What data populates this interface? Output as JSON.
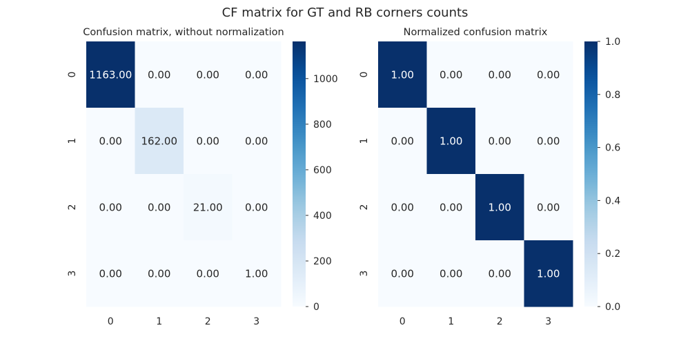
{
  "suptitle": "CF matrix for GT and RB corners counts",
  "colormap": {
    "name": "Blues",
    "stops": [
      "#f7fbff",
      "#deebf7",
      "#c6dbef",
      "#9ecae1",
      "#6baed6",
      "#4292c6",
      "#2171b5",
      "#08519c",
      "#08306b"
    ]
  },
  "cell_text_colors": {
    "dark_bg": "#ffffff",
    "light_bg": "#262626"
  },
  "chart_data": [
    {
      "type": "heatmap",
      "title": "Confusion matrix, without normalization",
      "x_tick_labels": [
        "0",
        "1",
        "2",
        "3"
      ],
      "y_tick_labels": [
        "0",
        "1",
        "2",
        "3"
      ],
      "values": [
        [
          1163,
          0,
          0,
          0
        ],
        [
          0,
          162,
          0,
          0
        ],
        [
          0,
          0,
          21,
          0
        ],
        [
          0,
          0,
          0,
          1
        ]
      ],
      "annotations": [
        [
          "1163.00",
          "0.00",
          "0.00",
          "0.00"
        ],
        [
          "0.00",
          "162.00",
          "0.00",
          "0.00"
        ],
        [
          "0.00",
          "0.00",
          "21.00",
          "0.00"
        ],
        [
          "0.00",
          "0.00",
          "0.00",
          "1.00"
        ]
      ],
      "color_range": [
        0,
        1163
      ],
      "colorbar_ticks": [
        0,
        200,
        400,
        600,
        800,
        1000
      ],
      "colorbar_tick_labels": [
        "0",
        "200",
        "400",
        "600",
        "800",
        "1000"
      ],
      "grid": false
    },
    {
      "type": "heatmap",
      "title": "Normalized confusion matrix",
      "x_tick_labels": [
        "0",
        "1",
        "2",
        "3"
      ],
      "y_tick_labels": [
        "0",
        "1",
        "2",
        "3"
      ],
      "values": [
        [
          1.0,
          0.0,
          0.0,
          0.0
        ],
        [
          0.0,
          1.0,
          0.0,
          0.0
        ],
        [
          0.0,
          0.0,
          1.0,
          0.0
        ],
        [
          0.0,
          0.0,
          0.0,
          1.0
        ]
      ],
      "annotations": [
        [
          "1.00",
          "0.00",
          "0.00",
          "0.00"
        ],
        [
          "0.00",
          "1.00",
          "0.00",
          "0.00"
        ],
        [
          "0.00",
          "0.00",
          "1.00",
          "0.00"
        ],
        [
          "0.00",
          "0.00",
          "0.00",
          "1.00"
        ]
      ],
      "color_range": [
        0.0,
        1.0
      ],
      "colorbar_ticks": [
        0.0,
        0.2,
        0.4,
        0.6,
        0.8,
        1.0
      ],
      "colorbar_tick_labels": [
        "0.0",
        "0.2",
        "0.4",
        "0.6",
        "0.8",
        "1.0"
      ],
      "grid": false
    }
  ]
}
